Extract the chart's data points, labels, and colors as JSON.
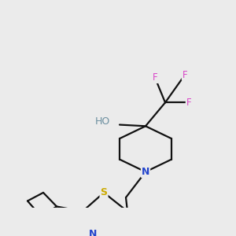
{
  "background_color": "#ebebeb",
  "figsize": [
    3.0,
    3.0
  ],
  "dpi": 100,
  "atom_colors": {
    "F": "#d946c8",
    "O": "#e53935",
    "HO": "#6b8e9f",
    "N": "#2244cc",
    "S": "#ccaa00",
    "C": "#111111"
  },
  "bond_color": "#111111",
  "bond_lw": 1.6
}
